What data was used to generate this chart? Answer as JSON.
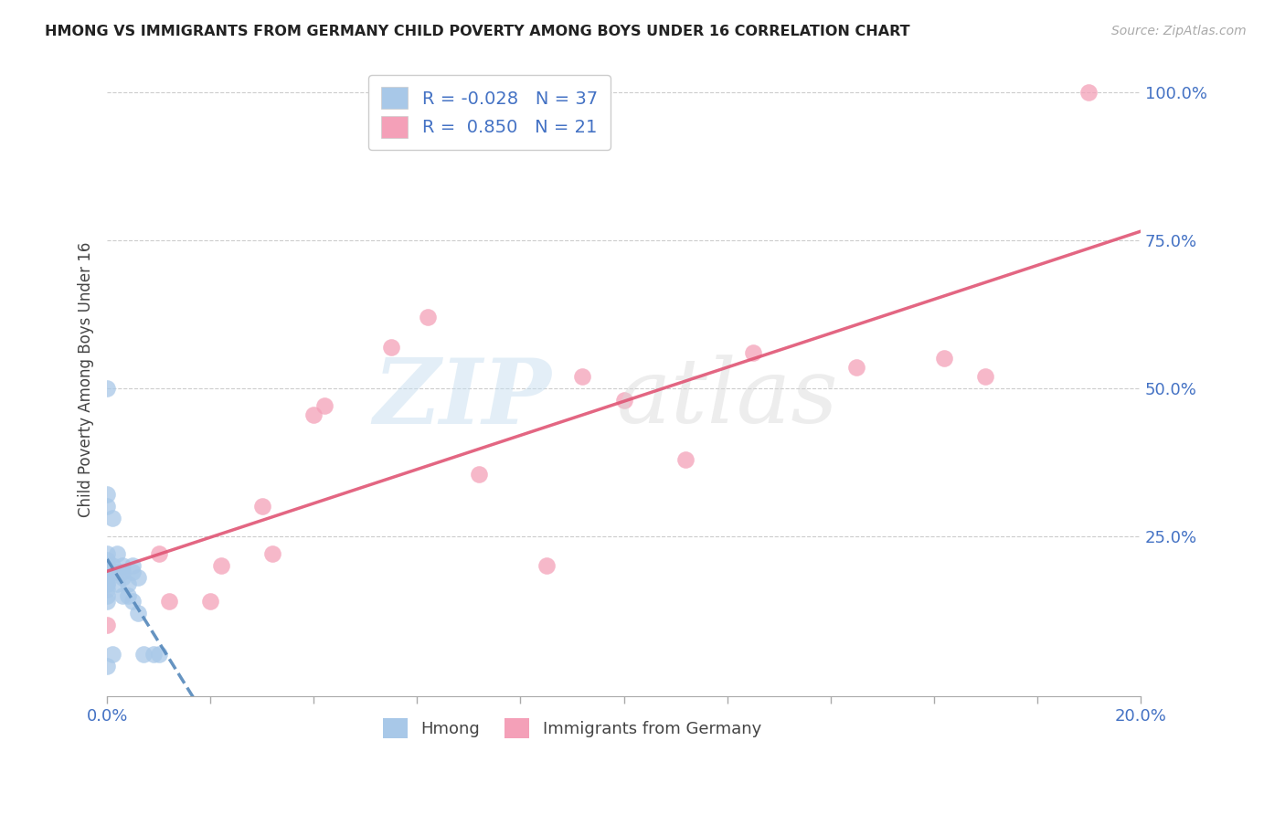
{
  "title": "HMONG VS IMMIGRANTS FROM GERMANY CHILD POVERTY AMONG BOYS UNDER 16 CORRELATION CHART",
  "source": "Source: ZipAtlas.com",
  "ylabel": "Child Poverty Among Boys Under 16",
  "xlim": [
    0.0,
    0.2
  ],
  "ylim": [
    -0.02,
    1.05
  ],
  "x_ticks": [
    0.0,
    0.02,
    0.04,
    0.06,
    0.08,
    0.1,
    0.12,
    0.14,
    0.16,
    0.18,
    0.2
  ],
  "y_ticks_right": [
    0.25,
    0.5,
    0.75,
    1.0
  ],
  "hmong_R": -0.028,
  "hmong_N": 37,
  "germany_R": 0.85,
  "germany_N": 21,
  "hmong_color": "#a8c8e8",
  "germany_color": "#f4a0b8",
  "hmong_line_color": "#5588bb",
  "germany_line_color": "#e05575",
  "hmong_x": [
    0.0,
    0.0,
    0.0,
    0.0,
    0.0,
    0.0,
    0.0,
    0.0,
    0.0,
    0.0,
    0.0,
    0.0,
    0.0,
    0.0,
    0.0,
    0.0,
    0.001,
    0.001,
    0.001,
    0.001,
    0.002,
    0.002,
    0.002,
    0.003,
    0.003,
    0.003,
    0.003,
    0.004,
    0.004,
    0.005,
    0.005,
    0.005,
    0.006,
    0.006,
    0.007,
    0.009,
    0.01
  ],
  "hmong_y": [
    0.5,
    0.32,
    0.3,
    0.22,
    0.21,
    0.2,
    0.2,
    0.19,
    0.19,
    0.18,
    0.17,
    0.17,
    0.16,
    0.15,
    0.14,
    0.03,
    0.28,
    0.2,
    0.19,
    0.05,
    0.22,
    0.19,
    0.17,
    0.2,
    0.19,
    0.18,
    0.15,
    0.17,
    0.15,
    0.2,
    0.19,
    0.14,
    0.18,
    0.12,
    0.05,
    0.05,
    0.05
  ],
  "germany_x": [
    0.0,
    0.01,
    0.012,
    0.02,
    0.022,
    0.03,
    0.032,
    0.04,
    0.042,
    0.055,
    0.062,
    0.072,
    0.085,
    0.092,
    0.1,
    0.112,
    0.125,
    0.145,
    0.162,
    0.17,
    0.19
  ],
  "germany_y": [
    0.1,
    0.22,
    0.14,
    0.14,
    0.2,
    0.3,
    0.22,
    0.455,
    0.47,
    0.57,
    0.62,
    0.355,
    0.2,
    0.52,
    0.48,
    0.38,
    0.56,
    0.535,
    0.55,
    0.52,
    1.0
  ]
}
